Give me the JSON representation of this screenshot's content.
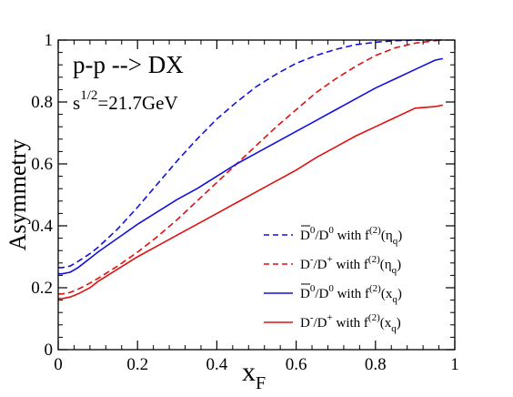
{
  "chart_data": {
    "type": "line",
    "xlabel": "x",
    "xlabel_sub": "F",
    "ylabel": "Asymmetry",
    "xlim": [
      0,
      1
    ],
    "ylim": [
      0,
      1
    ],
    "x_ticks": [
      "0",
      "0.2",
      "0.4",
      "0.6",
      "0.8",
      "1"
    ],
    "y_ticks": [
      "0",
      "0.2",
      "0.4",
      "0.6",
      "0.8",
      "1"
    ],
    "grid": false,
    "legend_position": "bottom-right",
    "annotations": {
      "process": "p-p --> DX",
      "energy_base": "s",
      "energy_exp": "1/2",
      "energy_value": "=21.7GeV"
    },
    "series": [
      {
        "name": "D̄⁰/D⁰ with f⁽²⁾(ηq)",
        "legend": {
          "main": "D",
          "overbar": true,
          "sup1": "0",
          "mid": "/D",
          "sup2": "0",
          "tail": " with f",
          "sup3": "(2)",
          "arg": "(η",
          "argsub": "q",
          "close": ")"
        },
        "color": "#1010e0",
        "style": "dashed",
        "x": [
          0,
          0.01,
          0.03,
          0.05,
          0.08,
          0.1,
          0.15,
          0.2,
          0.25,
          0.3,
          0.35,
          0.4,
          0.45,
          0.5,
          0.55,
          0.6,
          0.65,
          0.7,
          0.75,
          0.8,
          0.85,
          0.9,
          0.95,
          0.97
        ],
        "y": [
          0.265,
          0.265,
          0.27,
          0.285,
          0.31,
          0.33,
          0.39,
          0.46,
          0.535,
          0.61,
          0.68,
          0.745,
          0.8,
          0.85,
          0.89,
          0.925,
          0.95,
          0.97,
          0.985,
          0.993,
          0.998,
          1.0,
          1.0,
          1.0
        ]
      },
      {
        "name": "D⁻/D⁺ with f⁽²⁾(ηq)",
        "legend": {
          "main": "D",
          "overbar": false,
          "sup1": "-",
          "mid": "/D",
          "sup2": "+",
          "tail": " with f",
          "sup3": "(2)",
          "arg": "(η",
          "argsub": "q",
          "close": ")"
        },
        "color": "#e01010",
        "style": "dashed",
        "x": [
          0,
          0.01,
          0.03,
          0.05,
          0.08,
          0.1,
          0.15,
          0.2,
          0.25,
          0.3,
          0.35,
          0.4,
          0.45,
          0.5,
          0.55,
          0.6,
          0.65,
          0.7,
          0.75,
          0.8,
          0.85,
          0.9,
          0.95,
          0.97
        ],
        "y": [
          0.18,
          0.18,
          0.185,
          0.195,
          0.215,
          0.23,
          0.27,
          0.315,
          0.365,
          0.42,
          0.48,
          0.54,
          0.6,
          0.66,
          0.72,
          0.775,
          0.83,
          0.875,
          0.915,
          0.95,
          0.975,
          0.99,
          0.998,
          1.0
        ]
      },
      {
        "name": "D̄⁰/D⁰ with f⁽²⁾(xq)",
        "legend": {
          "main": "D",
          "overbar": true,
          "sup1": "0",
          "mid": "/D",
          "sup2": "0",
          "tail": " with f",
          "sup3": "(2)",
          "arg": "(x",
          "argsub": "q",
          "close": ")"
        },
        "color": "#1010e0",
        "style": "solid",
        "x": [
          0,
          0.01,
          0.03,
          0.05,
          0.08,
          0.1,
          0.15,
          0.2,
          0.25,
          0.3,
          0.35,
          0.4,
          0.45,
          0.5,
          0.55,
          0.6,
          0.65,
          0.7,
          0.75,
          0.8,
          0.85,
          0.9,
          0.95,
          0.97
        ],
        "y": [
          0.245,
          0.245,
          0.25,
          0.265,
          0.295,
          0.315,
          0.36,
          0.405,
          0.445,
          0.485,
          0.52,
          0.56,
          0.6,
          0.635,
          0.67,
          0.705,
          0.74,
          0.775,
          0.81,
          0.845,
          0.875,
          0.905,
          0.935,
          0.94
        ]
      },
      {
        "name": "D⁻/D⁺ with f⁽²⁾(xq)",
        "legend": {
          "main": "D",
          "overbar": false,
          "sup1": "-",
          "mid": "/D",
          "sup2": "+",
          "tail": " with f",
          "sup3": "(2)",
          "arg": "(x",
          "argsub": "q",
          "close": ")"
        },
        "color": "#e01010",
        "style": "solid",
        "x": [
          0,
          0.01,
          0.03,
          0.05,
          0.08,
          0.1,
          0.15,
          0.2,
          0.25,
          0.3,
          0.35,
          0.4,
          0.45,
          0.5,
          0.55,
          0.6,
          0.65,
          0.7,
          0.75,
          0.8,
          0.85,
          0.9,
          0.95,
          0.97
        ],
        "y": [
          0.165,
          0.165,
          0.17,
          0.18,
          0.2,
          0.22,
          0.26,
          0.3,
          0.335,
          0.37,
          0.405,
          0.44,
          0.475,
          0.51,
          0.545,
          0.58,
          0.62,
          0.655,
          0.69,
          0.72,
          0.75,
          0.78,
          0.785,
          0.79
        ]
      }
    ]
  }
}
